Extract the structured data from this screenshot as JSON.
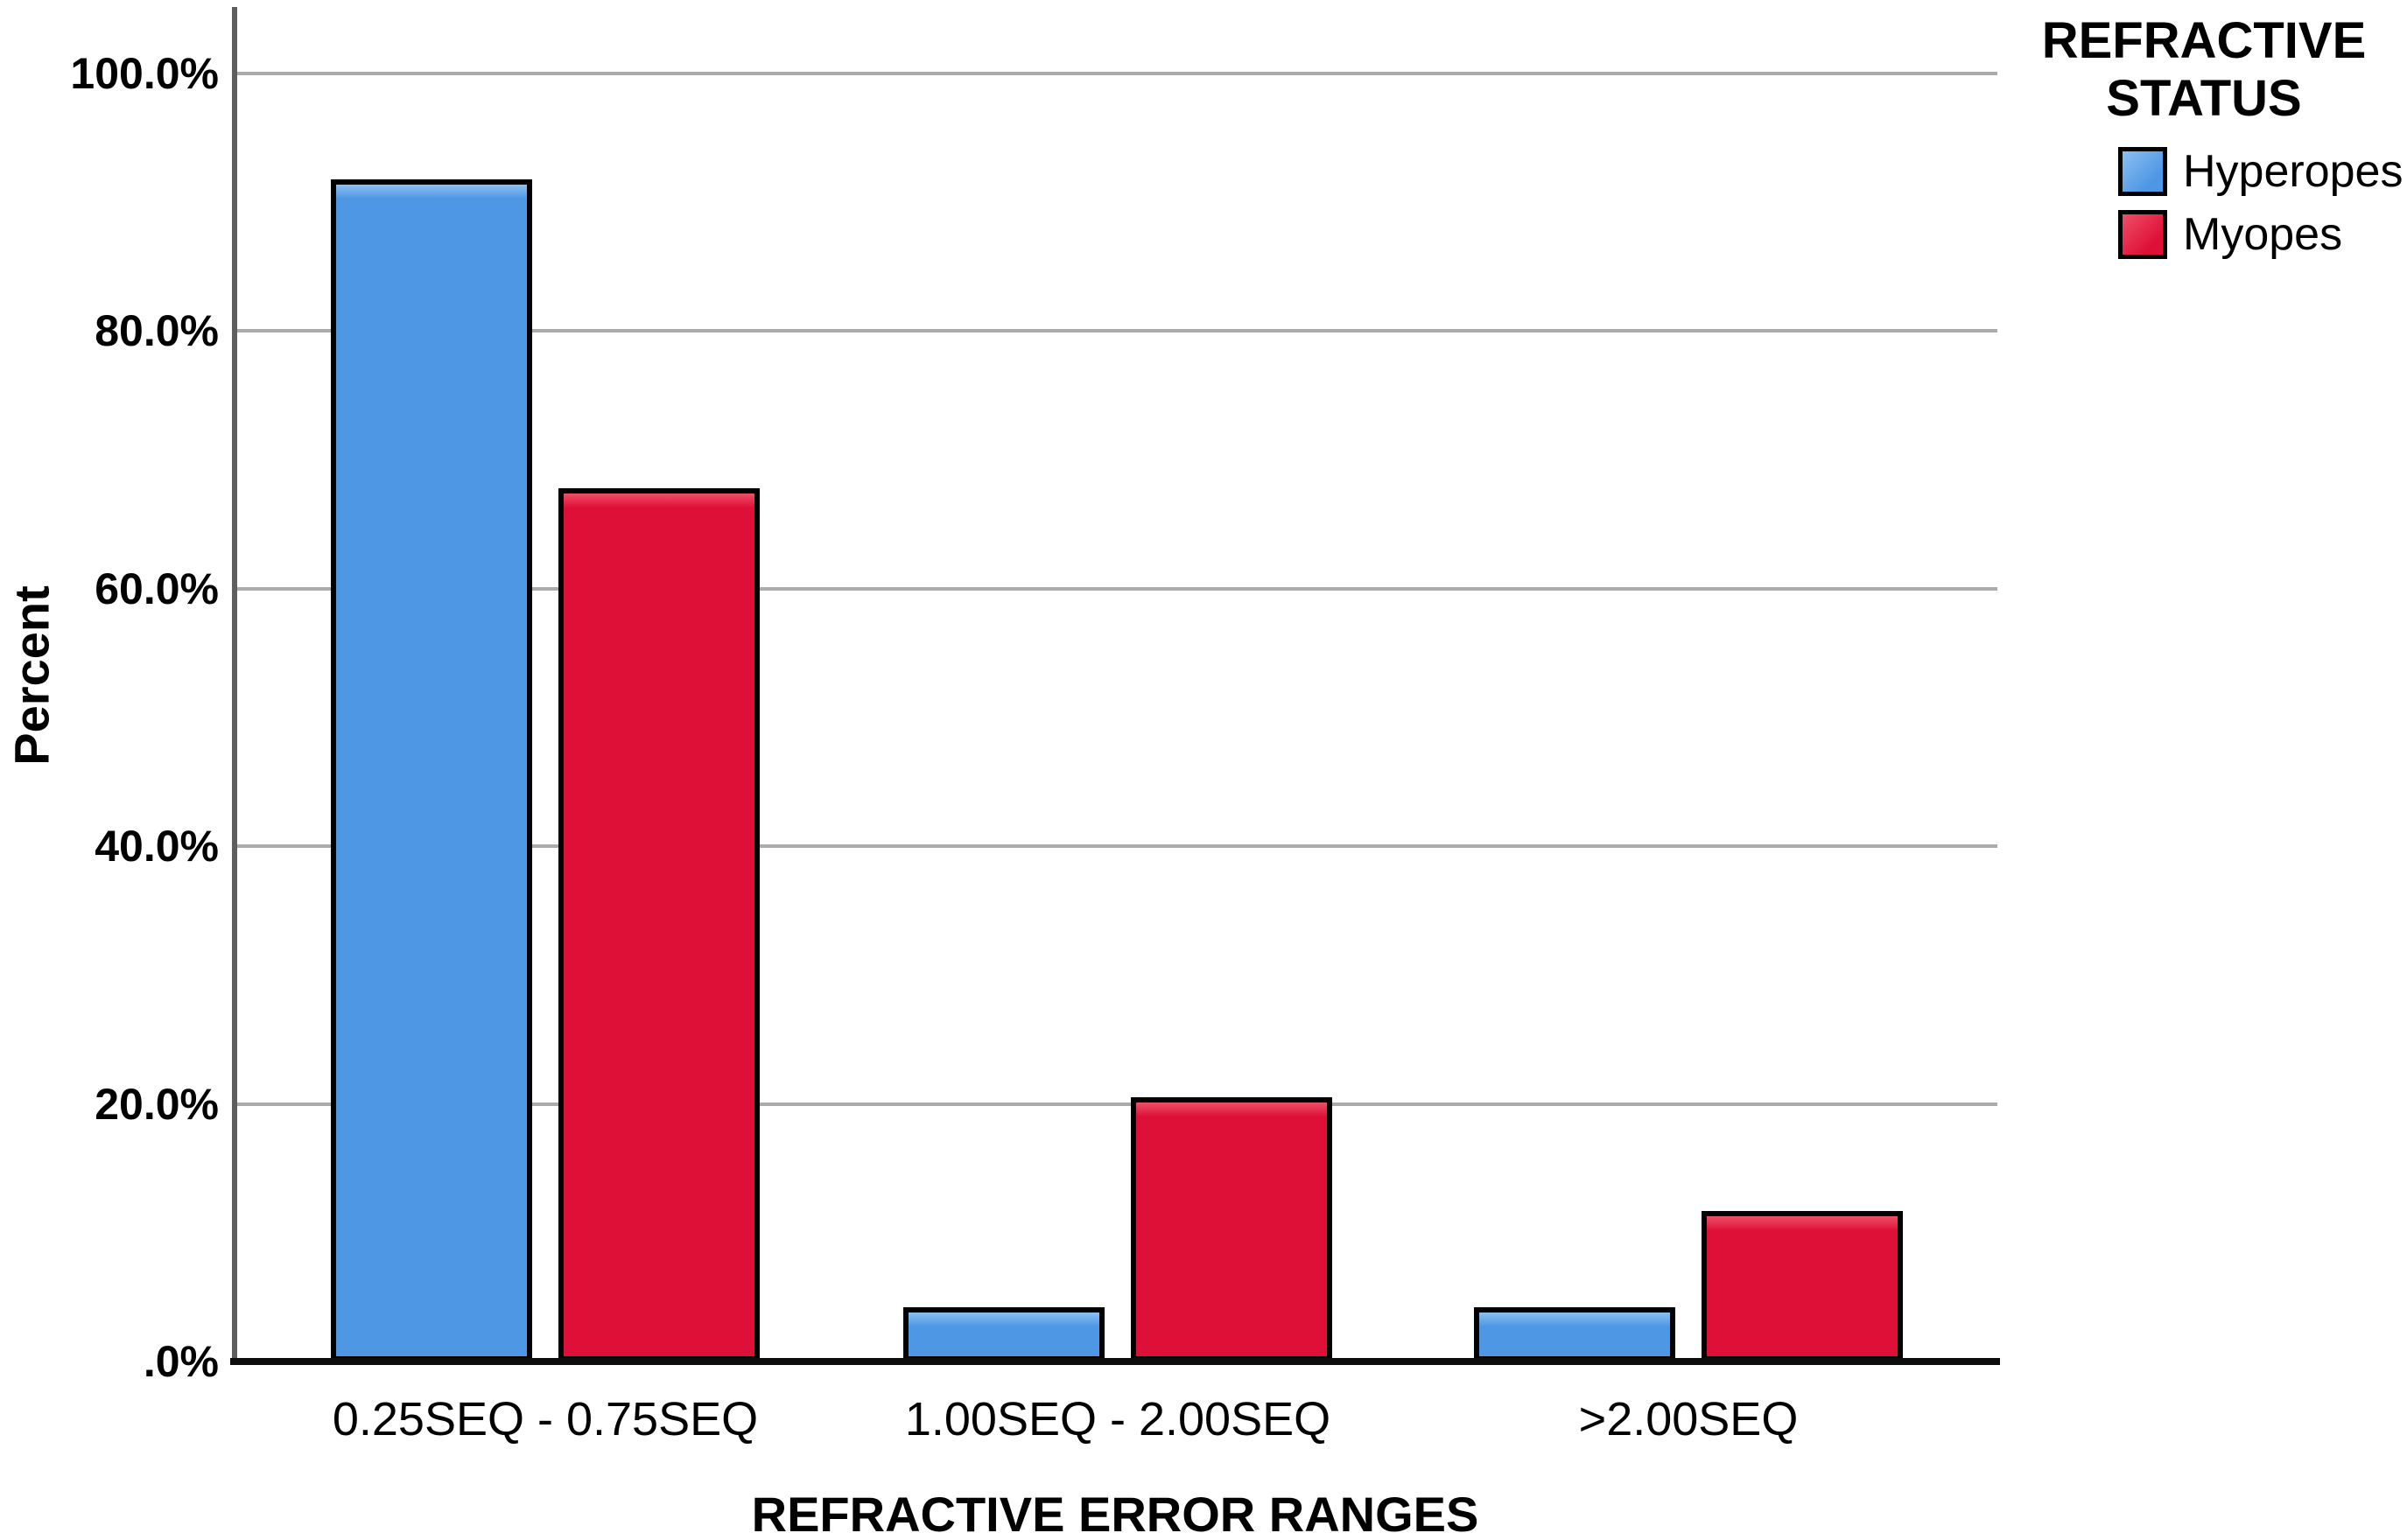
{
  "figure": {
    "background": "#ffffff"
  },
  "chart_data": {
    "type": "bar",
    "title": "",
    "categories": [
      "0.25SEQ - 0.75SEQ",
      "1.00SEQ - 2.00SEQ",
      ">2.00SEQ"
    ],
    "series": [
      {
        "name": "Hyperopes",
        "color": "#4E97E5",
        "highlight": "#8CC0F2",
        "values": [
          91.8,
          4.2,
          4.2
        ]
      },
      {
        "name": "Myopes",
        "color": "#DF1038",
        "highlight": "#EE4F66",
        "values": [
          67.8,
          20.5,
          11.7
        ]
      }
    ],
    "xlabel": "REFRACTIVE ERROR RANGES",
    "ylabel": "Percent",
    "ylim": [
      0,
      100
    ],
    "yticks": [
      {
        "value": 100,
        "label": "100.0%"
      },
      {
        "value": 80,
        "label": "80.0%"
      },
      {
        "value": 60,
        "label": "60.0%"
      },
      {
        "value": 40,
        "label": "40.0%"
      },
      {
        "value": 20,
        "label": "20.0%"
      },
      {
        "value": 0,
        "label": ".0%"
      }
    ],
    "grid": true,
    "legend": {
      "title_lines": [
        "REFRACTIVE",
        "STATUS"
      ],
      "position": "top-right",
      "entries": [
        "Hyperopes",
        "Myopes"
      ]
    },
    "axis_colors": {
      "gridline": "#ABABAB",
      "y_axis": "#5E5E5E",
      "x_axis": "#0D0D0D",
      "bar_border": "#000000",
      "text": "#000000"
    }
  }
}
